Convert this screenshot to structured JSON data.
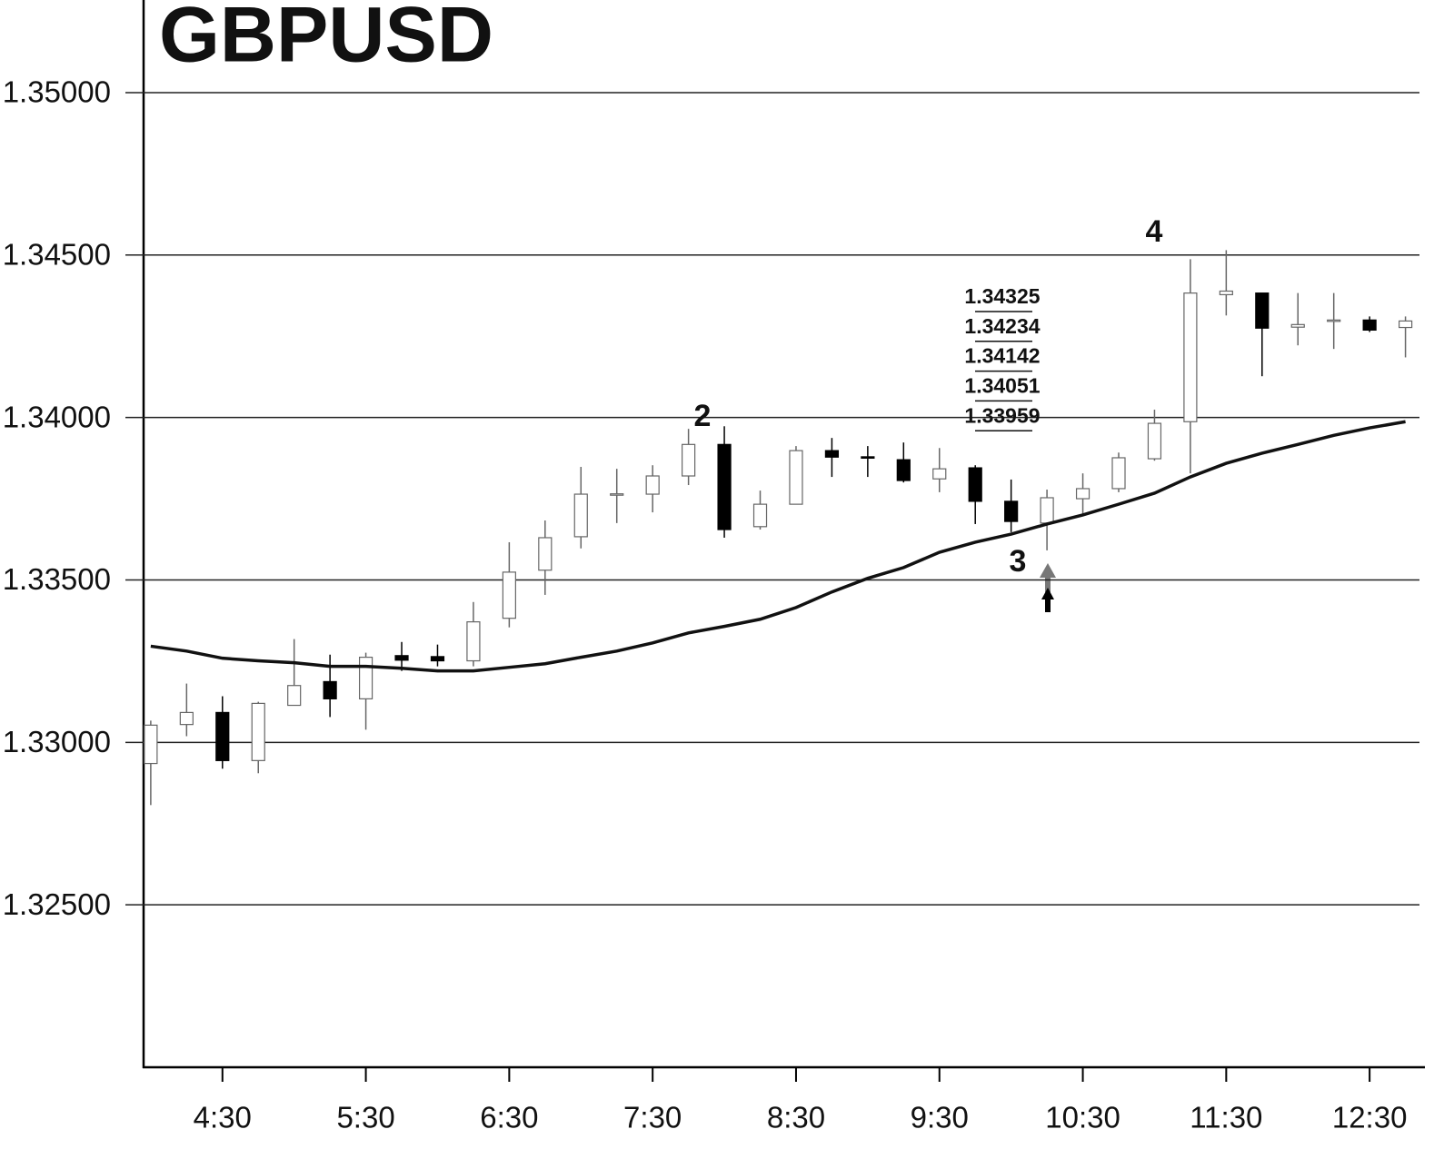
{
  "chart_data": {
    "type": "candlestick",
    "title": "GBPUSD",
    "x": [
      "4:00",
      "4:15",
      "4:30",
      "4:45",
      "5:00",
      "5:15",
      "5:30",
      "5:45",
      "6:00",
      "6:15",
      "6:30",
      "6:45",
      "7:00",
      "7:15",
      "7:30",
      "7:45",
      "8:00",
      "8:15",
      "8:30",
      "8:45",
      "9:00",
      "9:15",
      "9:30",
      "9:45",
      "10:00",
      "10:15",
      "10:30",
      "10:45",
      "11:00",
      "11:15",
      "11:30",
      "11:45",
      "12:00",
      "12:15",
      "12:30",
      "12:45"
    ],
    "open": [
      1.32935,
      1.33055,
      1.33092,
      1.32944,
      1.33114,
      1.33187,
      1.33134,
      1.33267,
      1.33264,
      1.33251,
      1.33382,
      1.3353,
      1.33633,
      1.33764,
      1.33764,
      1.3382,
      1.33917,
      1.33664,
      1.33733,
      1.33898,
      1.33879,
      1.3387,
      1.33811,
      1.33845,
      1.33742,
      1.33675,
      1.3375,
      1.33781,
      1.33873,
      1.33987,
      1.34378,
      1.34383,
      1.34278,
      1.34299,
      1.343,
      1.34277
    ],
    "high": [
      1.33067,
      1.33181,
      1.33142,
      1.33125,
      1.33318,
      1.3327,
      1.33276,
      1.33309,
      1.33301,
      1.33432,
      1.33616,
      1.33683,
      1.33848,
      1.33842,
      1.33853,
      1.33965,
      1.33973,
      1.33775,
      1.33912,
      1.33937,
      1.33912,
      1.33923,
      1.33906,
      1.33853,
      1.33809,
      1.33778,
      1.33828,
      1.33892,
      1.34024,
      1.34487,
      1.34515,
      1.34383,
      1.34383,
      1.34383,
      1.34311,
      1.34311
    ],
    "low": [
      1.32807,
      1.33019,
      1.32919,
      1.32905,
      1.33114,
      1.33078,
      1.33039,
      1.3322,
      1.33234,
      1.33234,
      1.33354,
      1.33454,
      1.33597,
      1.33675,
      1.33708,
      1.33792,
      1.3363,
      1.33655,
      1.33733,
      1.33817,
      1.33817,
      1.338,
      1.3377,
      1.33672,
      1.33647,
      1.33591,
      1.33703,
      1.3377,
      1.33867,
      1.33828,
      1.34314,
      1.34127,
      1.34222,
      1.34211,
      1.34263,
      1.34185
    ],
    "close": [
      1.33053,
      1.33092,
      1.32944,
      1.3312,
      1.33175,
      1.33134,
      1.33262,
      1.33253,
      1.33251,
      1.33371,
      1.33524,
      1.3363,
      1.33764,
      1.33765,
      1.3382,
      1.33917,
      1.33655,
      1.33733,
      1.33898,
      1.33878,
      1.33878,
      1.33806,
      1.33842,
      1.33742,
      1.3368,
      1.33753,
      1.33781,
      1.33876,
      1.33982,
      1.34383,
      1.34389,
      1.34275,
      1.34286,
      1.343,
      1.34269,
      1.34297
    ],
    "moving_average": {
      "color": "#111111",
      "values": [
        1.33296,
        1.33281,
        1.33259,
        1.33251,
        1.33245,
        1.33234,
        1.33234,
        1.33228,
        1.3322,
        1.3322,
        1.33231,
        1.33242,
        1.33262,
        1.33281,
        1.33306,
        1.33337,
        1.33357,
        1.33379,
        1.33415,
        1.33463,
        1.33505,
        1.33538,
        1.33585,
        1.33616,
        1.33641,
        1.33672,
        1.337,
        1.33733,
        1.33767,
        1.33817,
        1.33859,
        1.3389,
        1.33917,
        1.33945,
        1.33968,
        1.33987
      ]
    },
    "up_color": "#ffffff",
    "down_color": "#000000",
    "xlim": [
      "3:57",
      "12:52"
    ],
    "xticks": [
      "4:30",
      "5:30",
      "6:30",
      "7:30",
      "8:30",
      "9:30",
      "10:30",
      "11:30",
      "12:30"
    ],
    "ylim": [
      1.32,
      1.35285
    ],
    "yticks": [
      {
        "value": 1.325,
        "label": "1.32500"
      },
      {
        "value": 1.33,
        "label": "1.33000"
      },
      {
        "value": 1.335,
        "label": "1.33500"
      },
      {
        "value": 1.34,
        "label": "1.34000"
      },
      {
        "value": 1.345,
        "label": "1.34500"
      },
      {
        "value": 1.35,
        "label": "1.35000"
      }
    ],
    "grid": true,
    "annotations": [
      "2",
      "3",
      "4"
    ],
    "price_levels": [
      1.34325,
      1.34234,
      1.34142,
      1.34051,
      1.33959
    ]
  }
}
